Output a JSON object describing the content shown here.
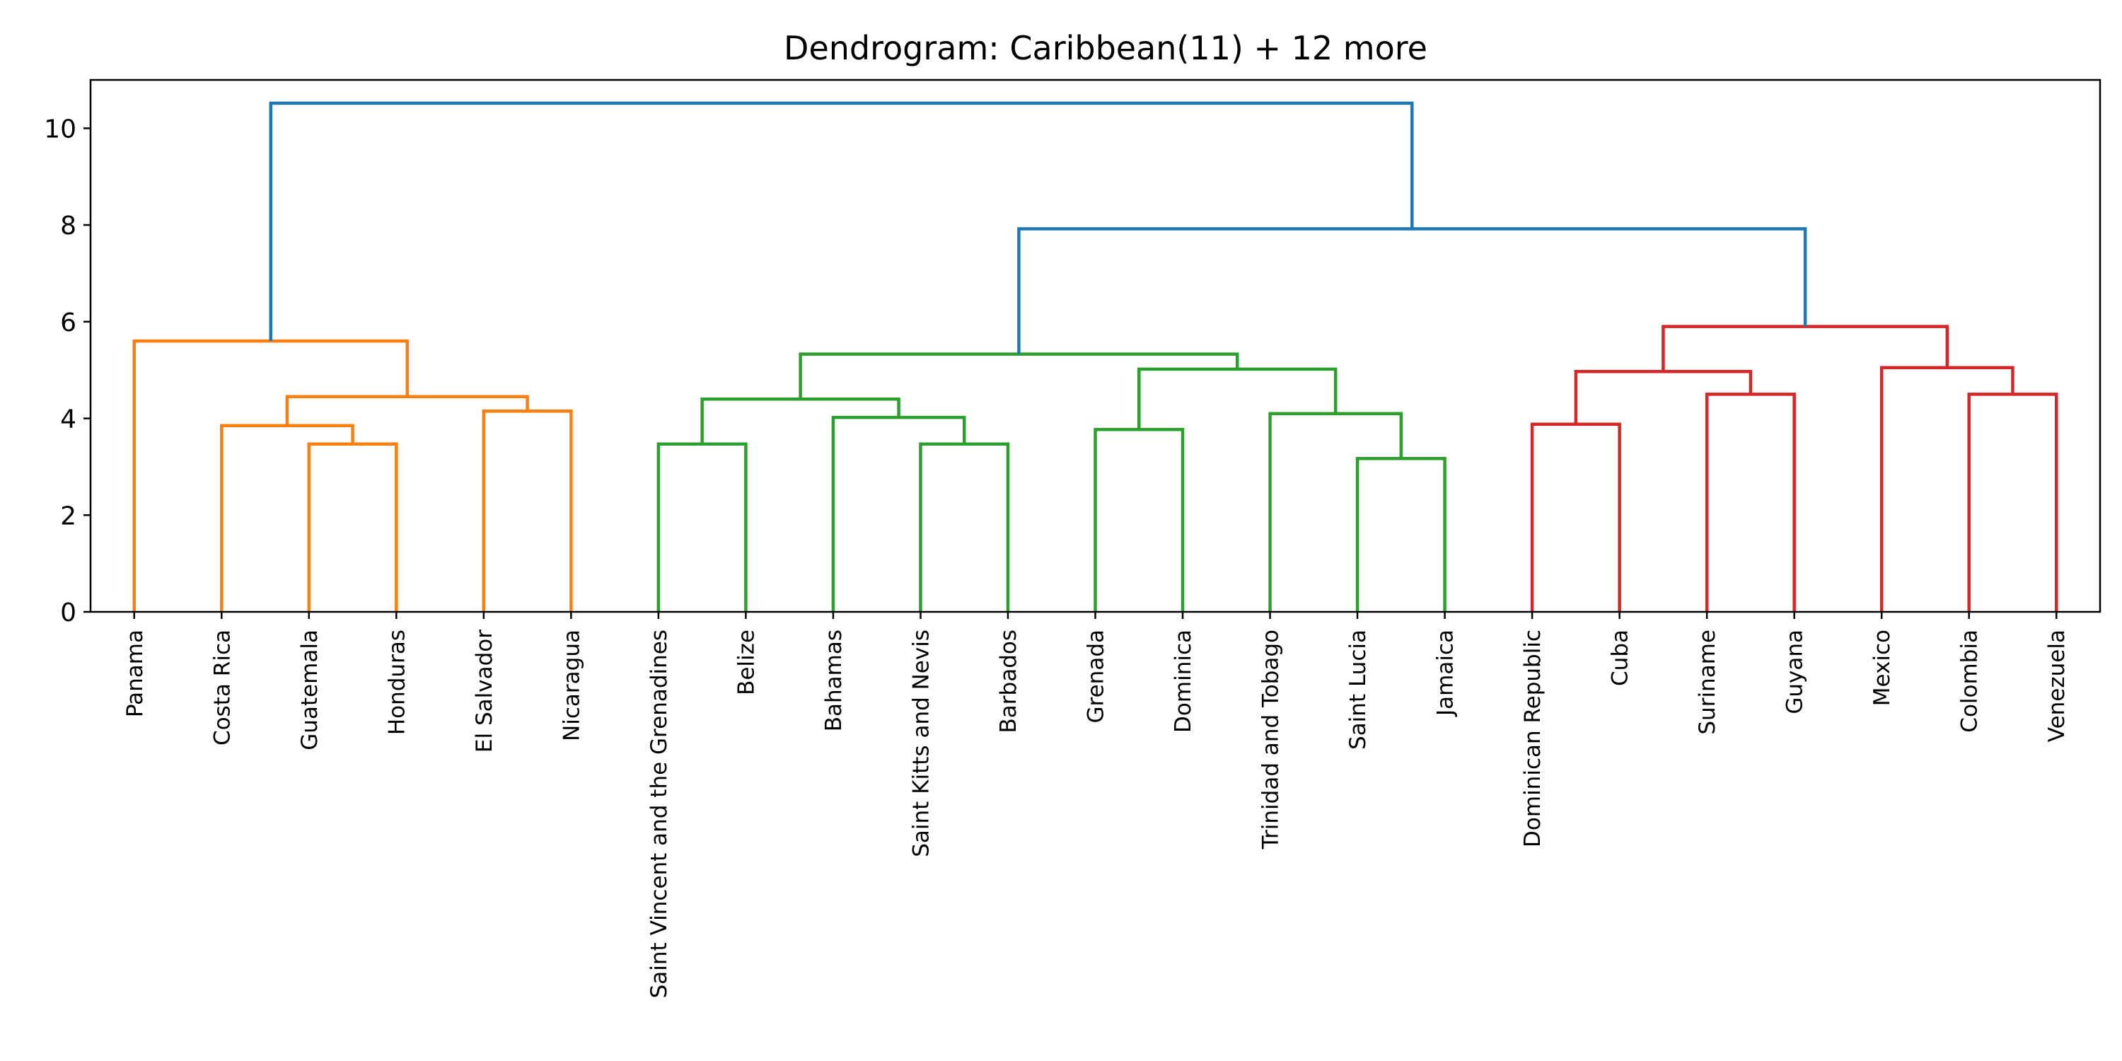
{
  "chart_data": {
    "type": "dendrogram",
    "title": "Dendrogram: Caribbean(11) + 12 more",
    "xlabel": "",
    "ylabel": "",
    "ylim": [
      0,
      11
    ],
    "yticks": [
      0,
      2,
      4,
      6,
      8,
      10
    ],
    "grid": false,
    "leaves": [
      "Panama",
      "Costa Rica",
      "Guatemala",
      "Honduras",
      "El Salvador",
      "Nicaragua",
      "Saint Vincent and the Grenadines",
      "Belize",
      "Bahamas",
      "Saint Kitts and Nevis",
      "Barbados",
      "Grenada",
      "Dominica",
      "Trinidad and Tobago",
      "Saint Lucia",
      "Jamaica",
      "Dominican Republic",
      "Cuba",
      "Suriname",
      "Guyana",
      "Mexico",
      "Colombia",
      "Venezuela"
    ],
    "colors": {
      "orange": "#ff7f0e",
      "green": "#2ca02c",
      "red": "#d62728",
      "blue": "#1f77b4"
    },
    "merges": [
      {
        "a": "Guatemala",
        "b": "Honduras",
        "height": 3.47,
        "color": "orange"
      },
      {
        "a": "Costa Rica",
        "b": 0,
        "height": 3.85,
        "color": "orange"
      },
      {
        "a": "El Salvador",
        "b": "Nicaragua",
        "height": 4.15,
        "color": "orange"
      },
      {
        "a": 1,
        "b": 2,
        "height": 4.45,
        "color": "orange"
      },
      {
        "a": "Panama",
        "b": 3,
        "height": 5.6,
        "color": "orange"
      },
      {
        "a": "Saint Vincent and the Grenadines",
        "b": "Belize",
        "height": 3.47,
        "color": "green"
      },
      {
        "a": "Saint Kitts and Nevis",
        "b": "Barbados",
        "height": 3.47,
        "color": "green"
      },
      {
        "a": "Bahamas",
        "b": 6,
        "height": 4.02,
        "color": "green"
      },
      {
        "a": 5,
        "b": 7,
        "height": 4.4,
        "color": "green"
      },
      {
        "a": "Grenada",
        "b": "Dominica",
        "height": 3.77,
        "color": "green"
      },
      {
        "a": "Saint Lucia",
        "b": "Jamaica",
        "height": 3.17,
        "color": "green"
      },
      {
        "a": "Trinidad and Tobago",
        "b": 10,
        "height": 4.1,
        "color": "green"
      },
      {
        "a": 9,
        "b": 11,
        "height": 5.02,
        "color": "green"
      },
      {
        "a": 8,
        "b": 12,
        "height": 5.33,
        "color": "green"
      },
      {
        "a": "Dominican Republic",
        "b": "Cuba",
        "height": 3.88,
        "color": "red"
      },
      {
        "a": "Suriname",
        "b": "Guyana",
        "height": 4.5,
        "color": "red"
      },
      {
        "a": 14,
        "b": 15,
        "height": 4.97,
        "color": "red"
      },
      {
        "a": "Colombia",
        "b": "Venezuela",
        "height": 4.5,
        "color": "red"
      },
      {
        "a": "Mexico",
        "b": 17,
        "height": 5.05,
        "color": "red"
      },
      {
        "a": 16,
        "b": 18,
        "height": 5.9,
        "color": "red"
      },
      {
        "a": 13,
        "b": 19,
        "height": 7.92,
        "color": "blue"
      },
      {
        "a": 4,
        "b": 20,
        "height": 10.52,
        "color": "blue"
      }
    ]
  }
}
